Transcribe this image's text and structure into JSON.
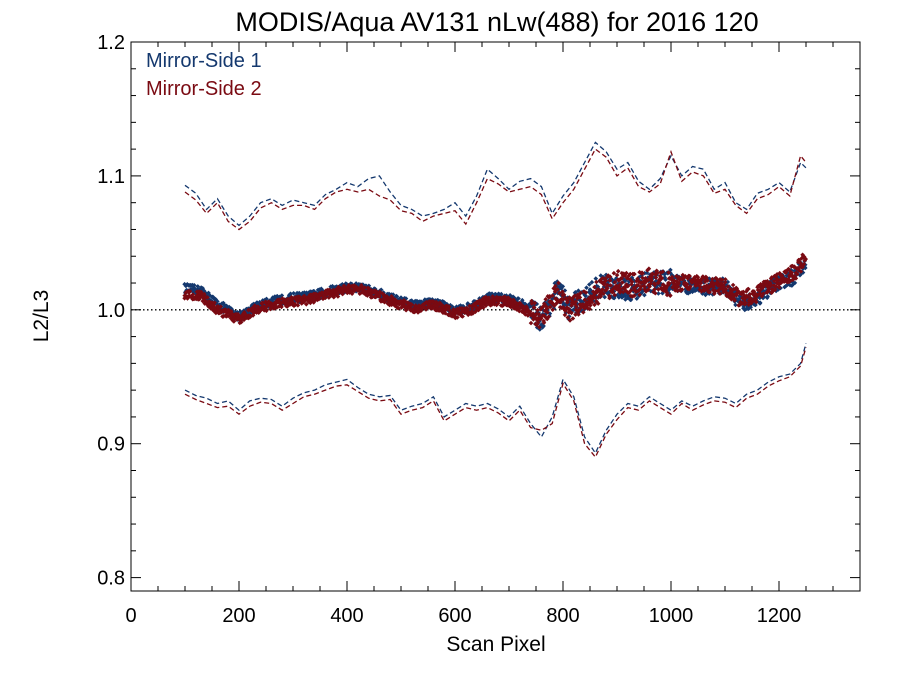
{
  "chart_data": {
    "type": "scatter",
    "title": "MODIS/Aqua AV131 nLw(488) for 2016 120",
    "xlabel": "Scan Pixel",
    "ylabel": "L2/L3",
    "xlim": [
      0,
      1350
    ],
    "ylim": [
      0.79,
      1.2
    ],
    "xticks": [
      0,
      200,
      400,
      600,
      800,
      1000,
      1200
    ],
    "xtick_labels": [
      "0",
      "200",
      "400",
      "600",
      "800",
      "1000",
      "1200"
    ],
    "yticks": [
      0.8,
      0.9,
      1.0,
      1.1,
      1.2
    ],
    "ytick_labels": [
      "0.8",
      "0.9",
      "1.0",
      "1.1",
      "1.2"
    ],
    "reference_line": 1.0,
    "legend_position": "top-left",
    "colors": {
      "ms1": "#14386e",
      "ms2": "#7a0a12",
      "axis": "#000000"
    },
    "series": [
      {
        "name": "Mirror-Side 1",
        "color": "#14386e",
        "mean": {
          "x": [
            100,
            130,
            160,
            200,
            230,
            260,
            300,
            330,
            360,
            400,
            430,
            460,
            500,
            530,
            560,
            600,
            630,
            660,
            700,
            730,
            760,
            790,
            810,
            840,
            870,
            900,
            930,
            960,
            1000,
            1030,
            1060,
            1100,
            1130,
            1160,
            1200,
            1230,
            1250
          ],
          "y": [
            1.016,
            1.014,
            1.004,
            0.995,
            1.002,
            1.006,
            1.009,
            1.01,
            1.013,
            1.017,
            1.016,
            1.012,
            1.006,
            1.003,
            1.006,
            0.999,
            1.002,
            1.009,
            1.008,
            1.003,
            0.993,
            1.015,
            1.002,
            1.008,
            1.018,
            1.017,
            1.016,
            1.02,
            1.021,
            1.018,
            1.017,
            1.018,
            1.004,
            1.009,
            1.02,
            1.025,
            1.037
          ]
        },
        "upper": {
          "x": [
            100,
            120,
            140,
            160,
            180,
            200,
            220,
            240,
            260,
            280,
            300,
            320,
            340,
            360,
            380,
            400,
            420,
            440,
            460,
            480,
            500,
            520,
            540,
            560,
            580,
            600,
            620,
            640,
            660,
            680,
            700,
            720,
            740,
            760,
            780,
            800,
            820,
            840,
            860,
            880,
            900,
            920,
            940,
            960,
            980,
            1000,
            1020,
            1040,
            1060,
            1080,
            1100,
            1120,
            1140,
            1160,
            1180,
            1200,
            1220,
            1240,
            1250
          ],
          "y": [
            1.093,
            1.087,
            1.075,
            1.083,
            1.07,
            1.063,
            1.07,
            1.08,
            1.083,
            1.078,
            1.082,
            1.08,
            1.078,
            1.086,
            1.09,
            1.095,
            1.092,
            1.098,
            1.1,
            1.088,
            1.078,
            1.075,
            1.07,
            1.072,
            1.075,
            1.08,
            1.07,
            1.085,
            1.105,
            1.098,
            1.09,
            1.096,
            1.098,
            1.092,
            1.072,
            1.085,
            1.095,
            1.11,
            1.125,
            1.118,
            1.105,
            1.11,
            1.096,
            1.09,
            1.098,
            1.115,
            1.1,
            1.107,
            1.105,
            1.09,
            1.095,
            1.08,
            1.075,
            1.087,
            1.09,
            1.095,
            1.088,
            1.11,
            1.106
          ]
        },
        "lower": {
          "x": [
            100,
            120,
            140,
            160,
            180,
            200,
            220,
            240,
            260,
            280,
            300,
            320,
            340,
            360,
            380,
            400,
            420,
            440,
            460,
            480,
            500,
            520,
            540,
            560,
            580,
            600,
            620,
            640,
            660,
            680,
            700,
            720,
            740,
            760,
            780,
            800,
            820,
            840,
            860,
            880,
            900,
            920,
            940,
            960,
            980,
            1000,
            1020,
            1040,
            1060,
            1080,
            1100,
            1120,
            1140,
            1160,
            1180,
            1200,
            1220,
            1240,
            1250
          ],
          "y": [
            0.94,
            0.936,
            0.934,
            0.93,
            0.932,
            0.925,
            0.932,
            0.934,
            0.933,
            0.928,
            0.934,
            0.938,
            0.94,
            0.944,
            0.946,
            0.948,
            0.942,
            0.937,
            0.935,
            0.936,
            0.925,
            0.928,
            0.93,
            0.935,
            0.92,
            0.925,
            0.93,
            0.928,
            0.93,
            0.926,
            0.92,
            0.928,
            0.915,
            0.905,
            0.92,
            0.948,
            0.935,
            0.905,
            0.893,
            0.91,
            0.922,
            0.93,
            0.928,
            0.935,
            0.93,
            0.925,
            0.932,
            0.928,
            0.932,
            0.935,
            0.934,
            0.93,
            0.937,
            0.94,
            0.946,
            0.95,
            0.952,
            0.96,
            0.975
          ]
        }
      },
      {
        "name": "Mirror-Side 2",
        "color": "#7a0a12",
        "mean": {
          "x": [
            100,
            130,
            160,
            200,
            230,
            260,
            300,
            330,
            360,
            400,
            430,
            460,
            500,
            530,
            560,
            600,
            630,
            660,
            700,
            730,
            760,
            790,
            810,
            840,
            870,
            900,
            930,
            960,
            1000,
            1030,
            1060,
            1100,
            1130,
            1160,
            1200,
            1230,
            1250
          ],
          "y": [
            1.012,
            1.01,
            1.0,
            0.993,
            1.0,
            1.004,
            1.006,
            1.008,
            1.011,
            1.015,
            1.015,
            1.01,
            1.004,
            1.001,
            1.004,
            0.997,
            1.0,
            1.007,
            1.006,
            1.0,
            0.995,
            1.012,
            1.0,
            1.006,
            1.015,
            1.02,
            1.018,
            1.022,
            1.019,
            1.021,
            1.019,
            1.017,
            1.008,
            1.012,
            1.022,
            1.028,
            1.039
          ]
        },
        "upper": {
          "x": [
            100,
            120,
            140,
            160,
            180,
            200,
            220,
            240,
            260,
            280,
            300,
            320,
            340,
            360,
            380,
            400,
            420,
            440,
            460,
            480,
            500,
            520,
            540,
            560,
            580,
            600,
            620,
            640,
            660,
            680,
            700,
            720,
            740,
            760,
            780,
            800,
            820,
            840,
            860,
            880,
            900,
            920,
            940,
            960,
            980,
            1000,
            1020,
            1040,
            1060,
            1080,
            1100,
            1120,
            1140,
            1160,
            1180,
            1200,
            1220,
            1240,
            1250
          ],
          "y": [
            1.088,
            1.082,
            1.072,
            1.08,
            1.066,
            1.06,
            1.066,
            1.076,
            1.08,
            1.075,
            1.078,
            1.078,
            1.075,
            1.083,
            1.088,
            1.09,
            1.088,
            1.09,
            1.085,
            1.082,
            1.074,
            1.072,
            1.066,
            1.07,
            1.072,
            1.074,
            1.064,
            1.08,
            1.098,
            1.094,
            1.088,
            1.09,
            1.092,
            1.086,
            1.068,
            1.08,
            1.09,
            1.105,
            1.12,
            1.114,
            1.1,
            1.106,
            1.092,
            1.088,
            1.094,
            1.118,
            1.096,
            1.103,
            1.1,
            1.087,
            1.09,
            1.078,
            1.072,
            1.083,
            1.086,
            1.092,
            1.085,
            1.115,
            1.11
          ]
        },
        "lower": {
          "x": [
            100,
            120,
            140,
            160,
            180,
            200,
            220,
            240,
            260,
            280,
            300,
            320,
            340,
            360,
            380,
            400,
            420,
            440,
            460,
            480,
            500,
            520,
            540,
            560,
            580,
            600,
            620,
            640,
            660,
            680,
            700,
            720,
            740,
            760,
            780,
            800,
            820,
            840,
            860,
            880,
            900,
            920,
            940,
            960,
            980,
            1000,
            1020,
            1040,
            1060,
            1080,
            1100,
            1120,
            1140,
            1160,
            1180,
            1200,
            1220,
            1240,
            1250
          ],
          "y": [
            0.937,
            0.933,
            0.93,
            0.927,
            0.928,
            0.922,
            0.928,
            0.931,
            0.93,
            0.925,
            0.93,
            0.935,
            0.937,
            0.94,
            0.943,
            0.944,
            0.939,
            0.934,
            0.932,
            0.933,
            0.922,
            0.925,
            0.927,
            0.932,
            0.917,
            0.922,
            0.927,
            0.925,
            0.927,
            0.923,
            0.917,
            0.925,
            0.912,
            0.91,
            0.915,
            0.945,
            0.932,
            0.9,
            0.89,
            0.907,
            0.918,
            0.927,
            0.925,
            0.932,
            0.927,
            0.922,
            0.93,
            0.925,
            0.929,
            0.932,
            0.931,
            0.927,
            0.934,
            0.937,
            0.943,
            0.947,
            0.95,
            0.958,
            0.972
          ]
        }
      }
    ]
  }
}
